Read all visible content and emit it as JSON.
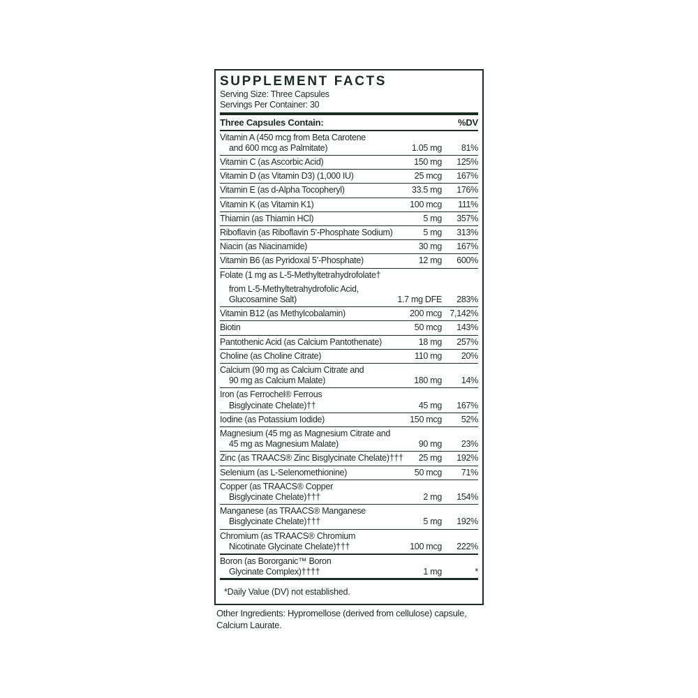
{
  "colors": {
    "ink": "#1c2a24",
    "background": "#ffffff"
  },
  "label": {
    "title": "SUPPLEMENT FACTS",
    "serving_size": "Serving Size: Three Capsules",
    "servings_per_container": "Servings Per Container: 30",
    "columns": {
      "name": "Three Capsules Contain:",
      "dv": "%DV"
    },
    "rows": [
      {
        "lines": [
          "Vitamin A (450 mcg from Beta Carotene",
          "and 600 mcg as Palmitate)"
        ],
        "amount": "1.05 mg",
        "dv": "81%"
      },
      {
        "lines": [
          "Vitamin C (as Ascorbic Acid)"
        ],
        "amount": "150 mg",
        "dv": "125%"
      },
      {
        "lines": [
          "Vitamin D (as Vitamin D3) (1,000 IU)"
        ],
        "amount": "25 mcg",
        "dv": "167%"
      },
      {
        "lines": [
          "Vitamin E (as d-Alpha Tocopheryl)"
        ],
        "amount": "33.5 mg",
        "dv": "176%"
      },
      {
        "lines": [
          "Vitamin K (as Vitamin K1)"
        ],
        "amount": "100 mcg",
        "dv": "111%"
      },
      {
        "lines": [
          "Thiamin (as Thiamin HCl)"
        ],
        "amount": "5 mg",
        "dv": "357%"
      },
      {
        "lines": [
          "Riboflavin (as Riboflavin 5’-Phosphate Sodium)"
        ],
        "amount": "5 mg",
        "dv": "313%"
      },
      {
        "lines": [
          "Niacin (as Niacinamide)"
        ],
        "amount": "30 mg",
        "dv": "167%"
      },
      {
        "lines": [
          "Vitamin B6 (as Pyridoxal 5’-Phosphate)"
        ],
        "amount": "12 mg",
        "dv": "600%"
      },
      {
        "lines": [
          "Folate (1 mg as L-5-Methyltetrahydrofolate†",
          "from L-5-Methyltetrahydrofolic Acid,",
          "Glucosamine Salt)"
        ],
        "amount": "1.7 mg DFE",
        "dv": "283%",
        "gap": true
      },
      {
        "lines": [
          "Vitamin B12 (as Methylcobalamin)"
        ],
        "amount": "200 mcg",
        "dv": "7,142%"
      },
      {
        "lines": [
          "Biotin"
        ],
        "amount": "50 mcg",
        "dv": "143%"
      },
      {
        "lines": [
          "Pantothenic Acid (as Calcium Pantothenate)"
        ],
        "amount": "18 mg",
        "dv": "257%"
      },
      {
        "lines": [
          "Choline (as Choline Citrate)"
        ],
        "amount": "110 mg",
        "dv": "20%"
      },
      {
        "lines": [
          "Calcium (90 mg as Calcium Citrate and",
          "90 mg as Calcium Malate)"
        ],
        "amount": "180 mg",
        "dv": "14%"
      },
      {
        "lines": [
          "Iron (as Ferrochel® Ferrous",
          "Bisglycinate Chelate)††"
        ],
        "amount": "45 mg",
        "dv": "167%"
      },
      {
        "lines": [
          "Iodine (as Potassium Iodide)"
        ],
        "amount": "150 mcg",
        "dv": "52%"
      },
      {
        "lines": [
          "Magnesium (45 mg as Magnesium Citrate and",
          "45 mg as Magnesium Malate)"
        ],
        "amount": "90 mg",
        "dv": "23%"
      },
      {
        "lines": [
          "Zinc (as TRAACS® Zinc Bisglycinate Chelate)†††"
        ],
        "amount": "25 mg",
        "dv": "192%"
      },
      {
        "lines": [
          "Selenium (as L-Selenomethionine)"
        ],
        "amount": "50 mcg",
        "dv": "71%"
      },
      {
        "lines": [
          "Copper (as TRAACS® Copper",
          "Bisglycinate Chelate)†††"
        ],
        "amount": "2 mg",
        "dv": "154%"
      },
      {
        "lines": [
          "Manganese (as TRAACS® Manganese",
          "Bisglycinate Chelate)†††"
        ],
        "amount": "5 mg",
        "dv": "192%"
      },
      {
        "lines": [
          "Chromium (as TRAACS® Chromium",
          "Nicotinate Glycinate Chelate)†††"
        ],
        "amount": "100 mcg",
        "dv": "222%"
      },
      {
        "lines": [
          "Boron (as Bororganic™ Boron",
          "Glycinate Complex)††††"
        ],
        "amount": "1 mg",
        "dv": "*",
        "thick_top": true
      }
    ],
    "footnote": "*Daily Value (DV) not established."
  },
  "other_ingredients": {
    "lines": [
      "Other Ingredients: Hypromellose (derived from cellulose) capsule,",
      "Calcium Laurate."
    ]
  }
}
